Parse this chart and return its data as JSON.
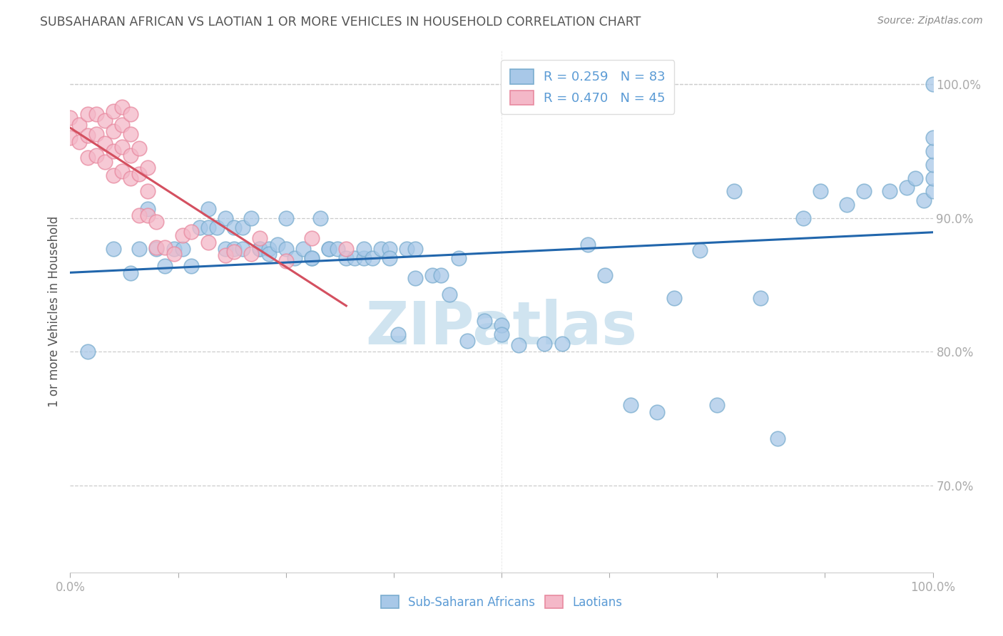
{
  "title": "SUBSAHARAN AFRICAN VS LAOTIAN 1 OR MORE VEHICLES IN HOUSEHOLD CORRELATION CHART",
  "source": "Source: ZipAtlas.com",
  "ylabel": "1 or more Vehicles in Household",
  "xlim": [
    0.0,
    1.0
  ],
  "ylim": [
    0.635,
    1.025
  ],
  "yticks": [
    0.7,
    0.8,
    0.9,
    1.0
  ],
  "ytick_labels": [
    "70.0%",
    "80.0%",
    "90.0%",
    "100.0%"
  ],
  "legend_labels": [
    "Sub-Saharan Africans",
    "Laotians"
  ],
  "R_blue": 0.259,
  "N_blue": 83,
  "R_pink": 0.47,
  "N_pink": 45,
  "blue_color": "#a8c8e8",
  "blue_edge_color": "#7aadcf",
  "pink_color": "#f4b8c8",
  "pink_edge_color": "#e88aa0",
  "blue_line_color": "#2166ac",
  "pink_line_color": "#d45060",
  "title_color": "#555555",
  "tick_color": "#5b9bd5",
  "watermark_color": "#d0e4f0",
  "blue_scatter_x": [
    0.02,
    0.05,
    0.07,
    0.08,
    0.09,
    0.1,
    0.11,
    0.12,
    0.13,
    0.14,
    0.15,
    0.16,
    0.16,
    0.17,
    0.18,
    0.18,
    0.19,
    0.19,
    0.2,
    0.2,
    0.21,
    0.22,
    0.22,
    0.23,
    0.23,
    0.24,
    0.25,
    0.25,
    0.26,
    0.27,
    0.28,
    0.28,
    0.29,
    0.3,
    0.3,
    0.31,
    0.32,
    0.33,
    0.34,
    0.34,
    0.35,
    0.36,
    0.37,
    0.37,
    0.38,
    0.39,
    0.4,
    0.4,
    0.42,
    0.43,
    0.44,
    0.45,
    0.46,
    0.48,
    0.5,
    0.5,
    0.52,
    0.55,
    0.57,
    0.6,
    0.62,
    0.65,
    0.68,
    0.7,
    0.73,
    0.75,
    0.77,
    0.8,
    0.82,
    0.85,
    0.87,
    0.9,
    0.92,
    0.95,
    0.97,
    0.98,
    0.99,
    1.0,
    1.0,
    1.0,
    1.0,
    1.0,
    1.0
  ],
  "blue_scatter_y": [
    0.8,
    0.877,
    0.859,
    0.877,
    0.907,
    0.877,
    0.864,
    0.877,
    0.877,
    0.864,
    0.893,
    0.907,
    0.893,
    0.893,
    0.877,
    0.9,
    0.893,
    0.877,
    0.877,
    0.893,
    0.9,
    0.877,
    0.877,
    0.877,
    0.873,
    0.88,
    0.877,
    0.9,
    0.87,
    0.877,
    0.87,
    0.87,
    0.9,
    0.877,
    0.877,
    0.877,
    0.87,
    0.87,
    0.87,
    0.877,
    0.87,
    0.877,
    0.877,
    0.87,
    0.813,
    0.877,
    0.877,
    0.855,
    0.857,
    0.857,
    0.843,
    0.87,
    0.808,
    0.823,
    0.82,
    0.813,
    0.805,
    0.806,
    0.806,
    0.88,
    0.857,
    0.76,
    0.755,
    0.84,
    0.876,
    0.76,
    0.92,
    0.84,
    0.735,
    0.9,
    0.92,
    0.91,
    0.92,
    0.92,
    0.923,
    0.93,
    0.913,
    0.92,
    0.93,
    0.94,
    0.95,
    0.96,
    1.0
  ],
  "pink_scatter_x": [
    0.0,
    0.0,
    0.01,
    0.01,
    0.02,
    0.02,
    0.02,
    0.03,
    0.03,
    0.03,
    0.04,
    0.04,
    0.04,
    0.05,
    0.05,
    0.05,
    0.05,
    0.06,
    0.06,
    0.06,
    0.06,
    0.07,
    0.07,
    0.07,
    0.07,
    0.08,
    0.08,
    0.08,
    0.09,
    0.09,
    0.09,
    0.1,
    0.1,
    0.11,
    0.12,
    0.13,
    0.14,
    0.16,
    0.18,
    0.19,
    0.21,
    0.22,
    0.25,
    0.28,
    0.32
  ],
  "pink_scatter_y": [
    0.96,
    0.975,
    0.957,
    0.97,
    0.945,
    0.962,
    0.978,
    0.947,
    0.963,
    0.978,
    0.942,
    0.956,
    0.973,
    0.932,
    0.95,
    0.965,
    0.98,
    0.935,
    0.953,
    0.97,
    0.983,
    0.93,
    0.947,
    0.963,
    0.978,
    0.902,
    0.933,
    0.952,
    0.902,
    0.92,
    0.938,
    0.878,
    0.897,
    0.878,
    0.873,
    0.887,
    0.89,
    0.882,
    0.872,
    0.875,
    0.873,
    0.885,
    0.868,
    0.885,
    0.877
  ]
}
